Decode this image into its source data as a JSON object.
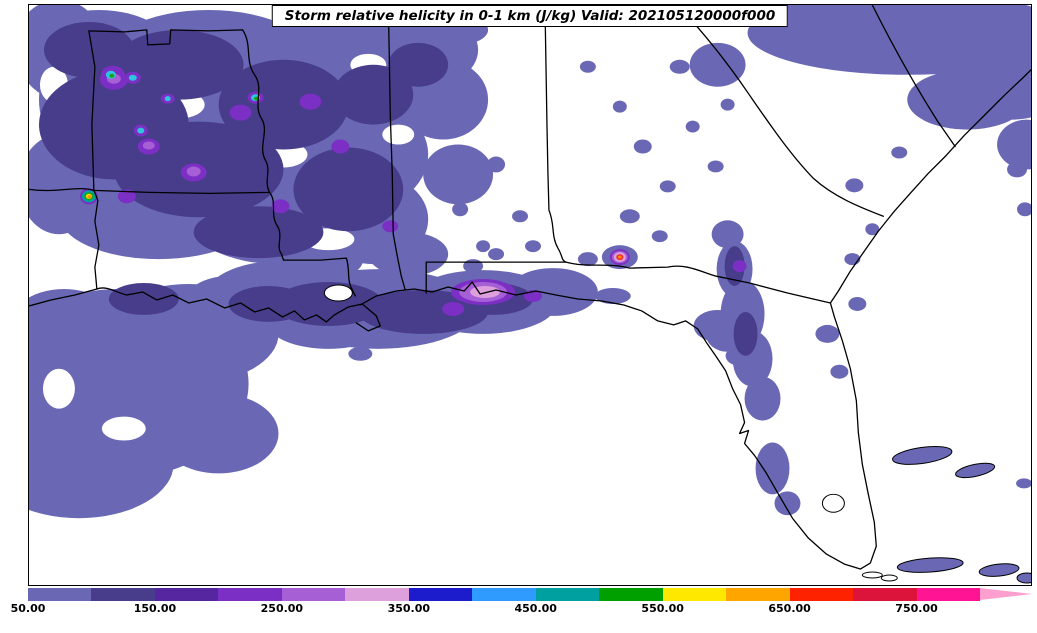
{
  "figure": {
    "title": "Storm relative helicity in 0-1 km (J/kg) Valid: 202105120000f000"
  },
  "map": {
    "type": "filled-contour-map",
    "region": "Southeastern United States, Gulf of Mexico and western Atlantic",
    "field": "Storm relative helicity in 0-1 km",
    "units": "J/kg",
    "valid_time": "202105120000f000",
    "outline_color": "#000000",
    "background_color": "#ffffff"
  },
  "colorbar": {
    "orientation": "horizontal",
    "min": 50,
    "max": 800,
    "interval": 50,
    "tick_labels": [
      "50.00",
      "150.00",
      "250.00",
      "350.00",
      "450.00",
      "550.00",
      "650.00",
      "750.00"
    ],
    "segment_colors": [
      "#6a68b4",
      "#483d8b",
      "#55269f",
      "#7c2fc4",
      "#a75fd6",
      "#dda0dd",
      "#1c1ccd",
      "#2f9aff",
      "#00a0a0",
      "#00a000",
      "#ffe800",
      "#ffa500",
      "#ff2200",
      "#dc143c",
      "#ff1493"
    ],
    "over_arrow_color": "#ff9fd0"
  }
}
